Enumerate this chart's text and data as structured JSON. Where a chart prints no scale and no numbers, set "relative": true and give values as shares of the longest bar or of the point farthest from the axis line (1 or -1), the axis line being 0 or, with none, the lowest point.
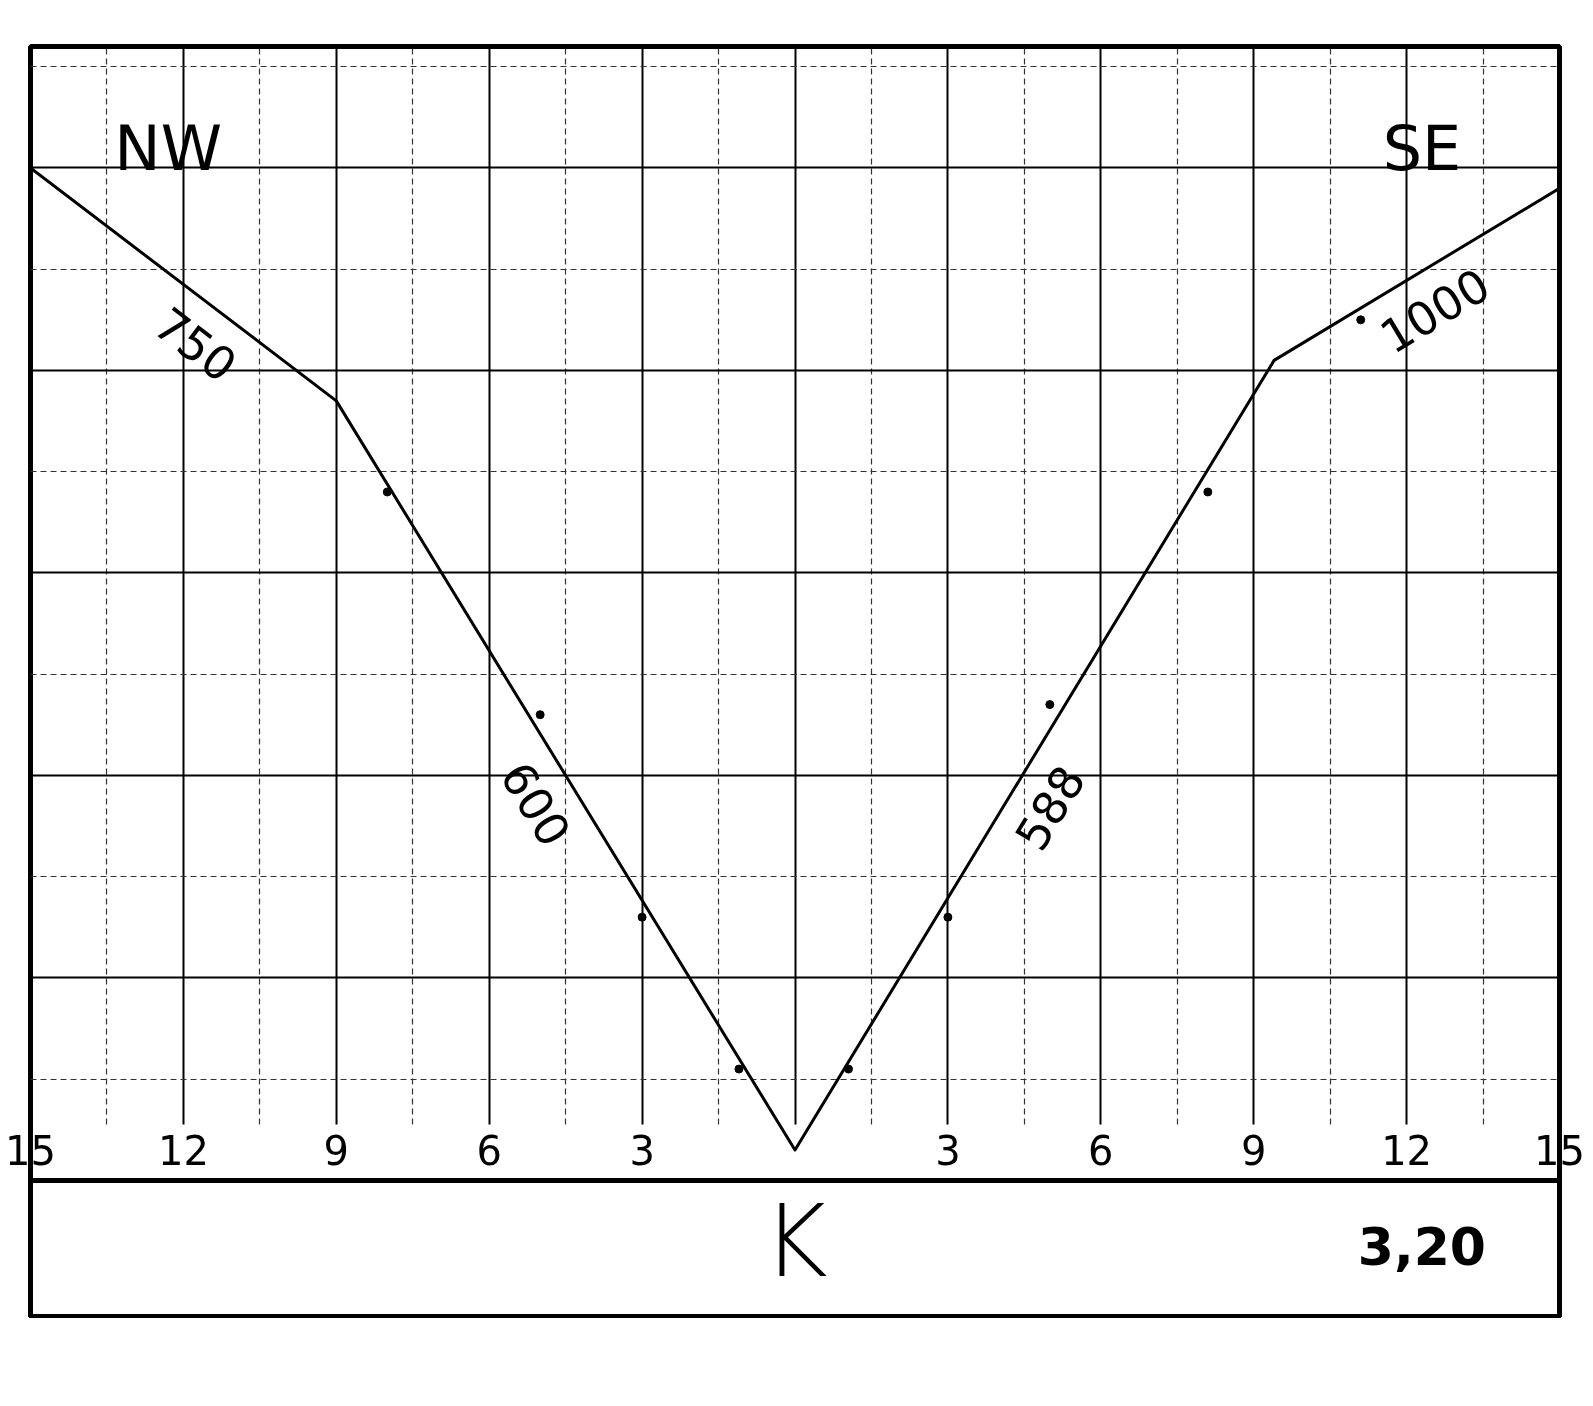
{
  "chart_data": {
    "type": "line",
    "relative": true,
    "xlabel": "K",
    "xlim": [
      -15,
      15
    ],
    "xticks": [
      {
        "value": -15,
        "label": "15"
      },
      {
        "value": -12,
        "label": "12"
      },
      {
        "value": -9,
        "label": "9"
      },
      {
        "value": -6,
        "label": "6"
      },
      {
        "value": -3,
        "label": "3"
      },
      {
        "value": 0,
        "label": null
      },
      3,
      6,
      9,
      12,
      15
    ],
    "grid": true,
    "series": [
      {
        "color": "#000000",
        "x": [
          -15,
          -9,
          0,
          9.4,
          15
        ],
        "values": [
          1.0,
          0.77,
          0.03,
          0.81,
          0.98
        ]
      },
      {
        "type": "scatter",
        "marker": "circle",
        "color": "#000000",
        "x": [
          -8,
          -5,
          -3,
          -1.1,
          1.05,
          3,
          5,
          8.1,
          11.1
        ],
        "values": [
          0.68,
          0.46,
          0.26,
          0.11,
          0.11,
          0.26,
          0.47,
          0.68,
          0.85
        ]
      }
    ],
    "annotations": [
      "NW",
      "SE",
      "3,20",
      "750",
      "600",
      "588",
      "1000"
    ]
  }
}
